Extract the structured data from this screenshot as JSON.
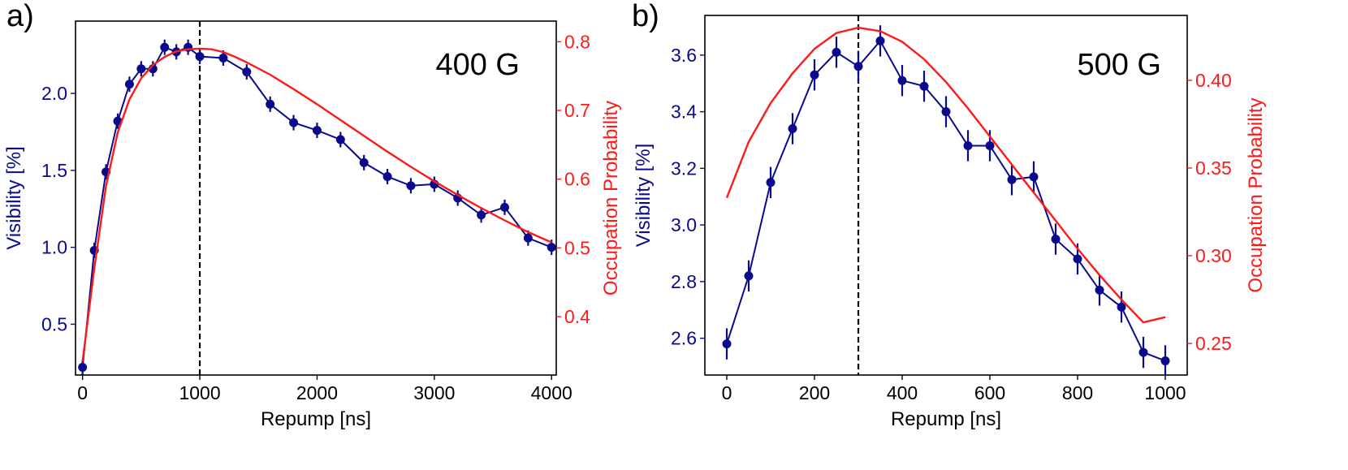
{
  "colors": {
    "visibility": "#0a0a8c",
    "occupation": "#ff1a1a",
    "frame": "#000000",
    "marker_line": "#000000"
  },
  "chart_data": [
    {
      "type": "line",
      "panel_label": "a)",
      "annotation": "400 G",
      "xlabel": "Repump [ns]",
      "ylabel_left": "Visibility [%]",
      "ylabel_right": "Occupation Probability",
      "xlim": [
        -60,
        4040
      ],
      "ylim_left": [
        0.17,
        2.47
      ],
      "ylim_right": [
        0.315,
        0.83
      ],
      "x_ticks": [
        0,
        1000,
        2000,
        3000,
        4000
      ],
      "x_tick_labels": [
        "0",
        "1000",
        "2000",
        "3000",
        "4000"
      ],
      "y_left_ticks": [
        0.5,
        1.0,
        1.5,
        2.0
      ],
      "y_left_tick_labels": [
        "0.5",
        "1.0",
        "1.5",
        "2.0"
      ],
      "y_right_ticks": [
        0.4,
        0.5,
        0.6,
        0.7,
        0.8
      ],
      "y_right_tick_labels": [
        "0.4",
        "0.5",
        "0.6",
        "0.7",
        "0.8"
      ],
      "vline_x": 1000,
      "grid": false,
      "series": [
        {
          "axis": "left",
          "style": "markers-line-errorbars",
          "x": [
            0,
            100,
            200,
            300,
            400,
            500,
            600,
            700,
            800,
            900,
            1000,
            1200,
            1400,
            1600,
            1800,
            2000,
            2200,
            2400,
            2600,
            2800,
            3000,
            3200,
            3400,
            3600,
            3800,
            4000
          ],
          "y": [
            0.22,
            0.98,
            1.49,
            1.82,
            2.06,
            2.16,
            2.16,
            2.3,
            2.27,
            2.3,
            2.24,
            2.23,
            2.14,
            1.93,
            1.81,
            1.76,
            1.7,
            1.55,
            1.46,
            1.4,
            1.41,
            1.32,
            1.21,
            1.26,
            1.06,
            1.0
          ],
          "yerr": [
            0.05,
            0.05,
            0.05,
            0.05,
            0.05,
            0.05,
            0.05,
            0.05,
            0.05,
            0.05,
            0.05,
            0.05,
            0.05,
            0.05,
            0.05,
            0.05,
            0.05,
            0.05,
            0.05,
            0.05,
            0.05,
            0.05,
            0.05,
            0.05,
            0.05,
            0.05
          ]
        },
        {
          "axis": "right",
          "style": "line",
          "x": [
            0,
            100,
            200,
            300,
            400,
            500,
            600,
            700,
            800,
            900,
            1000,
            1100,
            1200,
            1300,
            1400,
            1600,
            1800,
            2000,
            2200,
            2400,
            2600,
            2800,
            3000,
            3200,
            3400,
            3600,
            3800,
            4000
          ],
          "y": [
            0.335,
            0.47,
            0.59,
            0.668,
            0.716,
            0.747,
            0.766,
            0.778,
            0.786,
            0.789,
            0.79,
            0.789,
            0.785,
            0.778,
            0.77,
            0.752,
            0.731,
            0.709,
            0.686,
            0.663,
            0.64,
            0.618,
            0.597,
            0.577,
            0.558,
            0.54,
            0.523,
            0.508
          ]
        }
      ]
    },
    {
      "type": "line",
      "panel_label": "b)",
      "annotation": "500 G",
      "xlabel": "Repump [ns]",
      "ylabel_left": "Visibility [%]",
      "ylabel_right": "Occupation Probability",
      "xlim": [
        -50,
        1050
      ],
      "ylim_left": [
        2.47,
        3.74
      ],
      "ylim_right": [
        0.232,
        0.437
      ],
      "x_ticks": [
        0,
        200,
        400,
        600,
        800,
        1000
      ],
      "x_tick_labels": [
        "0",
        "200",
        "400",
        "600",
        "800",
        "1000"
      ],
      "y_left_ticks": [
        2.6,
        2.8,
        3.0,
        3.2,
        3.4,
        3.6
      ],
      "y_left_tick_labels": [
        "2.6",
        "2.8",
        "3.0",
        "3.2",
        "3.4",
        "3.6"
      ],
      "y_right_ticks": [
        0.25,
        0.3,
        0.35,
        0.4
      ],
      "y_right_tick_labels": [
        "0.25",
        "0.30",
        "0.35",
        "0.40"
      ],
      "vline_x": 300,
      "grid": false,
      "series": [
        {
          "axis": "left",
          "style": "markers-line-errorbars",
          "x": [
            0,
            50,
            100,
            150,
            200,
            250,
            300,
            350,
            400,
            450,
            500,
            550,
            600,
            650,
            700,
            750,
            800,
            850,
            900,
            950,
            1000
          ],
          "y": [
            2.58,
            2.82,
            3.15,
            3.34,
            3.53,
            3.61,
            3.56,
            3.65,
            3.51,
            3.49,
            3.4,
            3.28,
            3.28,
            3.16,
            3.17,
            2.95,
            2.88,
            2.77,
            2.71,
            2.55,
            2.52
          ],
          "yerr": [
            0.055,
            0.055,
            0.055,
            0.055,
            0.055,
            0.055,
            0.055,
            0.055,
            0.055,
            0.055,
            0.055,
            0.055,
            0.055,
            0.055,
            0.055,
            0.055,
            0.055,
            0.055,
            0.055,
            0.055,
            0.055
          ]
        },
        {
          "axis": "right",
          "style": "line",
          "x": [
            0,
            50,
            100,
            150,
            200,
            250,
            300,
            350,
            400,
            450,
            500,
            550,
            600,
            650,
            700,
            750,
            800,
            850,
            900,
            950,
            1000
          ],
          "y": [
            0.333,
            0.365,
            0.387,
            0.404,
            0.418,
            0.427,
            0.43,
            0.428,
            0.422,
            0.412,
            0.399,
            0.384,
            0.368,
            0.352,
            0.336,
            0.32,
            0.304,
            0.289,
            0.275,
            0.262,
            0.265
          ]
        }
      ]
    }
  ]
}
